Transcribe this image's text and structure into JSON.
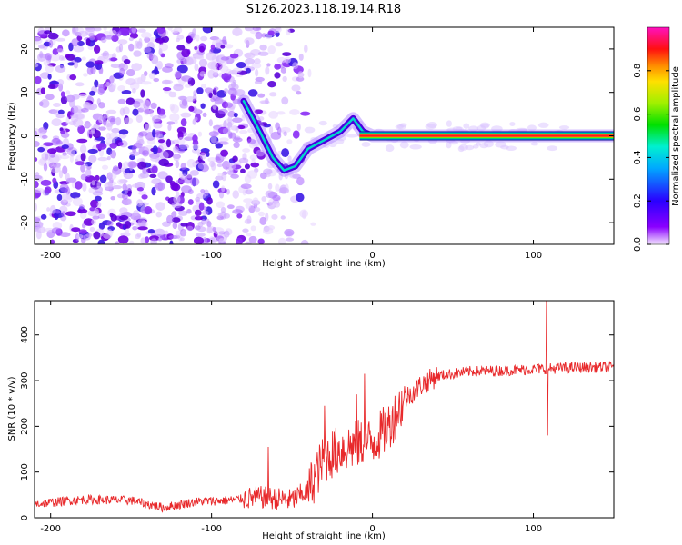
{
  "title": "S126.2023.118.19.14.R18",
  "colors": {
    "snr_line": "#e8292b",
    "blob": "#7a00e6",
    "axis": "#000000"
  },
  "chart_data": [
    {
      "type": "heatmap",
      "xlabel": "Height of straight line (km)",
      "ylabel": "Frequency (Hz)",
      "xlim": [
        -210,
        150
      ],
      "ylim": [
        -25,
        25
      ],
      "xticks": [
        -200,
        -100,
        0,
        100
      ],
      "yticks": [
        20,
        10,
        0,
        -10,
        -20
      ],
      "colorbar": {
        "label": "Normalized spectral amplitude",
        "range": [
          0.0,
          1.0
        ],
        "ticks": [
          0.0,
          0.2,
          0.4,
          0.6,
          0.8
        ],
        "colormap": "rainbow (purple-blue-cyan-green-yellow-red-magenta)"
      },
      "signal_trace": [
        {
          "x": -80,
          "y": 8
        },
        {
          "x": -70,
          "y": 1
        },
        {
          "x": -62,
          "y": -5
        },
        {
          "x": -55,
          "y": -8
        },
        {
          "x": -48,
          "y": -7
        },
        {
          "x": -40,
          "y": -3
        },
        {
          "x": -30,
          "y": -1
        },
        {
          "x": -20,
          "y": 1
        },
        {
          "x": -12,
          "y": 4
        },
        {
          "x": -6,
          "y": 1
        },
        {
          "x": 0,
          "y": 0
        },
        {
          "x": 20,
          "y": 0
        },
        {
          "x": 150,
          "y": 0
        }
      ],
      "steady_band": {
        "x_start": -8,
        "x_end": 150,
        "y": 0
      }
    },
    {
      "type": "line",
      "xlabel": "Height of straight line (km)",
      "ylabel": "SNR (10 * v/v)",
      "xlim": [
        -210,
        150
      ],
      "ylim": [
        0,
        475
      ],
      "xticks": [
        -200,
        -100,
        0,
        100
      ],
      "yticks": [
        0,
        100,
        200,
        300,
        400
      ],
      "series": [
        {
          "trend": [
            {
              "x": -210,
              "y": 30
            },
            {
              "x": -180,
              "y": 40
            },
            {
              "x": -150,
              "y": 38
            },
            {
              "x": -130,
              "y": 22
            },
            {
              "x": -110,
              "y": 35
            },
            {
              "x": -90,
              "y": 38
            },
            {
              "x": -70,
              "y": 45
            },
            {
              "x": -50,
              "y": 38
            },
            {
              "x": -40,
              "y": 60
            },
            {
              "x": -30,
              "y": 130
            },
            {
              "x": -20,
              "y": 150
            },
            {
              "x": -10,
              "y": 160
            },
            {
              "x": 0,
              "y": 165
            },
            {
              "x": 10,
              "y": 200
            },
            {
              "x": 20,
              "y": 260
            },
            {
              "x": 30,
              "y": 290
            },
            {
              "x": 40,
              "y": 310
            },
            {
              "x": 60,
              "y": 320
            },
            {
              "x": 80,
              "y": 322
            },
            {
              "x": 100,
              "y": 325
            },
            {
              "x": 120,
              "y": 328
            },
            {
              "x": 150,
              "y": 330
            }
          ],
          "spikes": [
            {
              "x": -65,
              "y": 155
            },
            {
              "x": -30,
              "y": 245
            },
            {
              "x": -10,
              "y": 270
            },
            {
              "x": -5,
              "y": 315
            },
            {
              "x": 108,
              "y": 475
            },
            {
              "x": 108.5,
              "y": 180
            }
          ]
        }
      ]
    }
  ]
}
